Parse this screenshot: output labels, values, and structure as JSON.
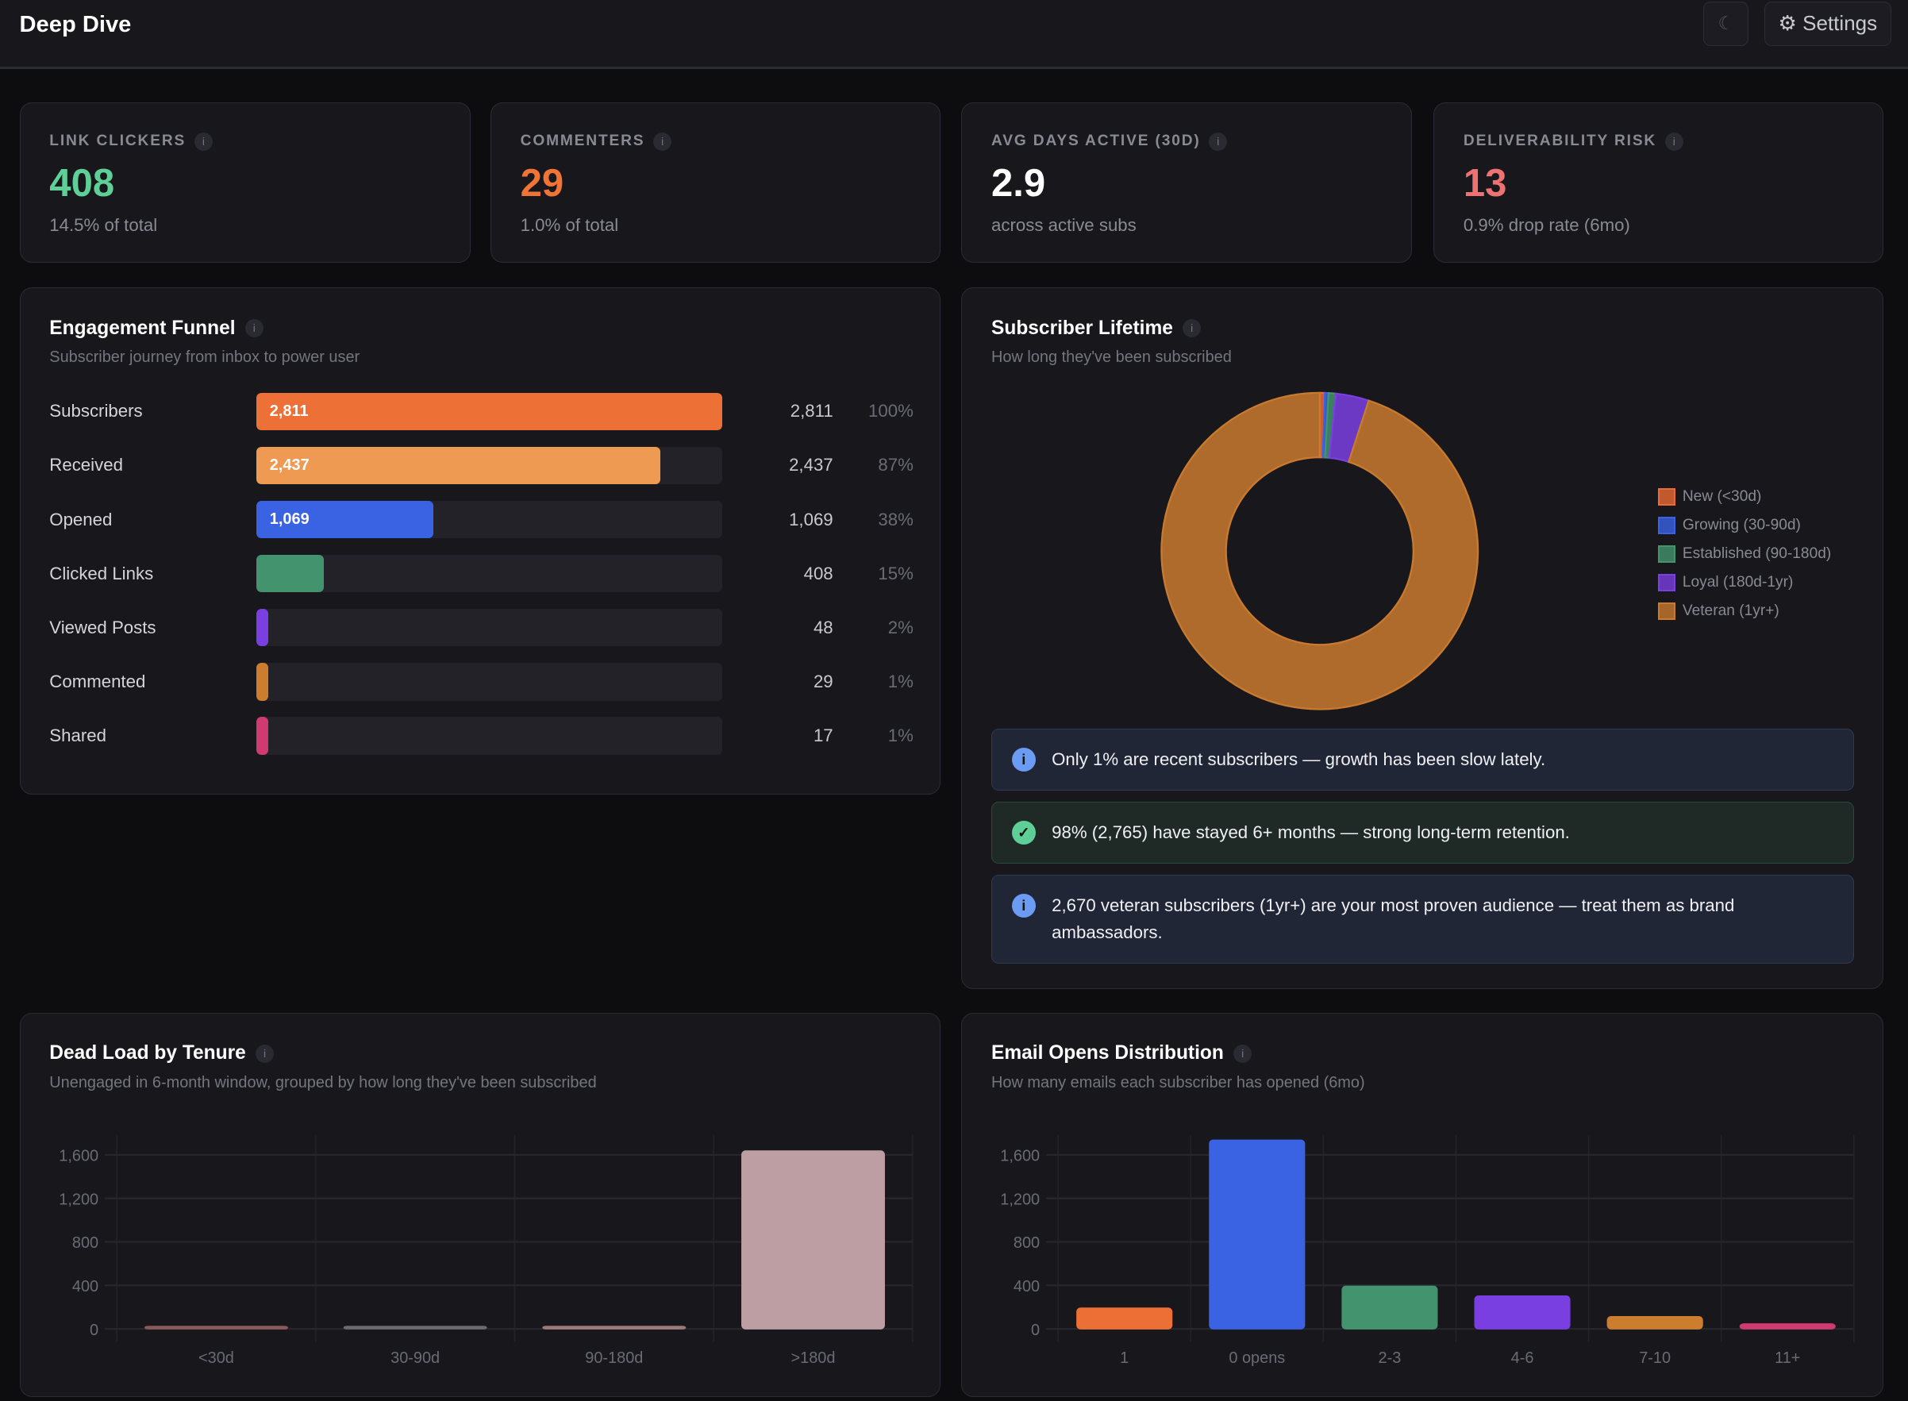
{
  "header": {
    "title": "Deep Dive",
    "theme_icon": "moon-icon",
    "settings_label": "⚙ Settings"
  },
  "stats": [
    {
      "label": "LINK CLICKERS",
      "value": "408",
      "sub": "14.5% of total",
      "color": "#5fcf98"
    },
    {
      "label": "COMMENTERS",
      "value": "29",
      "sub": "1.0% of total",
      "color": "#ef7436"
    },
    {
      "label": "AVG DAYS ACTIVE (30D)",
      "value": "2.9",
      "sub": "across active subs",
      "color": "#ffffff"
    },
    {
      "label": "DELIVERABILITY RISK",
      "value": "13",
      "sub": "0.9% drop rate (6mo)",
      "color": "#ee7272"
    }
  ],
  "funnel": {
    "title": "Engagement Funnel",
    "subtitle": "Subscriber journey from inbox to power user",
    "rows": [
      {
        "label": "Subscribers",
        "value": 2811,
        "display": "2,811",
        "pct": "100%",
        "color": "#ed7136",
        "inner": "2,811"
      },
      {
        "label": "Received",
        "value": 2437,
        "display": "2,437",
        "pct": "87%",
        "color": "#ef9a53",
        "inner": "2,437"
      },
      {
        "label": "Opened",
        "value": 1069,
        "display": "1,069",
        "pct": "38%",
        "color": "#3a63e3",
        "inner": "1,069"
      },
      {
        "label": "Clicked Links",
        "value": 408,
        "display": "408",
        "pct": "15%",
        "color": "#43936e",
        "inner": ""
      },
      {
        "label": "Viewed Posts",
        "value": 48,
        "display": "48",
        "pct": "2%",
        "color": "#7a3fe0",
        "inner": ""
      },
      {
        "label": "Commented",
        "value": 29,
        "display": "29",
        "pct": "1%",
        "color": "#cc7d2e",
        "inner": ""
      },
      {
        "label": "Shared",
        "value": 17,
        "display": "17",
        "pct": "1%",
        "color": "#cf3a70",
        "inner": ""
      }
    ]
  },
  "lifetime": {
    "title": "Subscriber Lifetime",
    "subtitle": "How long they've been subscribed",
    "chart_data": {
      "type": "pie",
      "labels": [
        "New (<30d)",
        "Growing (30-90d)",
        "Established (90-180d)",
        "Loyal (180d-1yr)",
        "Veteran (1yr+)"
      ],
      "values": [
        15,
        10,
        21,
        95,
        2670
      ],
      "colors": [
        "#ec6a35",
        "#3a63e3",
        "#43936e",
        "#7a3fe0",
        "#c97a2e"
      ],
      "legend": "right"
    },
    "insights": [
      {
        "type": "info",
        "icon": "i",
        "text": "Only 1% are recent subscribers — growth has been slow lately."
      },
      {
        "type": "success",
        "icon": "✓",
        "text": "98% (2,765) have stayed 6+ months — strong long-term retention."
      },
      {
        "type": "info",
        "icon": "i",
        "text": "2,670 veteran subscribers (1yr+) are your most proven audience — treat them as brand ambassadors."
      }
    ]
  },
  "deadload": {
    "title": "Dead Load by Tenure",
    "subtitle": "Unengaged in 6-month window, grouped by how long they've been subscribed",
    "chart_data": {
      "type": "bar",
      "categories": [
        "<30d",
        "30-90d",
        "90-180d",
        ">180d"
      ],
      "values": [
        5,
        5,
        10,
        1635
      ],
      "colors": [
        "#8a5a5a",
        "#6a6a70",
        "#9a7a7a",
        "#bc9ea3"
      ],
      "yticks": [
        "0",
        "400",
        "800",
        "1,200",
        "1,600"
      ],
      "ylim": [
        0,
        1800
      ],
      "grid": true
    }
  },
  "opens": {
    "title": "Email Opens Distribution",
    "subtitle": "How many emails each subscriber has opened (6mo)",
    "chart_data": {
      "type": "bar",
      "categories": [
        "1",
        "0 opens",
        "2-3",
        "4-6",
        "7-10",
        "11+"
      ],
      "values": [
        190,
        1735,
        392,
        302,
        112,
        45
      ],
      "colors": [
        "#ec6f36",
        "#3a63e3",
        "#43936e",
        "#7a3fe0",
        "#cc7d2e",
        "#cf3a70"
      ],
      "yticks": [
        "0",
        "400",
        "800",
        "1,200",
        "1,600"
      ],
      "ylim": [
        0,
        1800
      ],
      "grid": true
    }
  }
}
